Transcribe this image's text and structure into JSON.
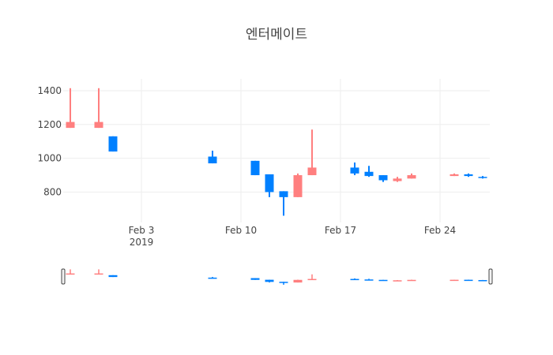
{
  "chart_data": {
    "type": "candlestick",
    "title": "엔터메이트",
    "xlabel": "",
    "ylabel": "",
    "x_ticks": [
      {
        "date": "2019-02-03",
        "label": "Feb 3",
        "sublabel": "2019"
      },
      {
        "date": "2019-02-10",
        "label": "Feb 10",
        "sublabel": ""
      },
      {
        "date": "2019-02-17",
        "label": "Feb 17",
        "sublabel": ""
      },
      {
        "date": "2019-02-24",
        "label": "Feb 24",
        "sublabel": ""
      }
    ],
    "y_ticks": [
      800,
      1000,
      1200,
      1400
    ],
    "xlim": [
      "2019-01-29",
      "2019-02-27"
    ],
    "ylim": [
      620,
      1470
    ],
    "grid": true,
    "legend": "none",
    "rangeslider": true,
    "increasing_color": "#ff7f7f",
    "decreasing_color": "#0080ff",
    "candles": [
      {
        "date": "2019-01-29",
        "open": 1180,
        "high": 1415,
        "low": 1180,
        "close": 1215
      },
      {
        "date": "2019-01-31",
        "open": 1180,
        "high": 1415,
        "low": 1180,
        "close": 1215
      },
      {
        "date": "2019-02-01",
        "open": 1130,
        "high": 1130,
        "low": 1040,
        "close": 1040
      },
      {
        "date": "2019-02-08",
        "open": 1010,
        "high": 1045,
        "low": 970,
        "close": 970
      },
      {
        "date": "2019-02-11",
        "open": 985,
        "high": 985,
        "low": 900,
        "close": 900
      },
      {
        "date": "2019-02-12",
        "open": 905,
        "high": 905,
        "low": 770,
        "close": 800
      },
      {
        "date": "2019-02-13",
        "open": 805,
        "high": 805,
        "low": 660,
        "close": 770
      },
      {
        "date": "2019-02-14",
        "open": 770,
        "high": 910,
        "low": 770,
        "close": 900
      },
      {
        "date": "2019-02-15",
        "open": 900,
        "high": 1170,
        "low": 900,
        "close": 945
      },
      {
        "date": "2019-02-18",
        "open": 945,
        "high": 975,
        "low": 900,
        "close": 910
      },
      {
        "date": "2019-02-19",
        "open": 920,
        "high": 955,
        "low": 890,
        "close": 895
      },
      {
        "date": "2019-02-20",
        "open": 900,
        "high": 900,
        "low": 860,
        "close": 870
      },
      {
        "date": "2019-02-21",
        "open": 865,
        "high": 890,
        "low": 860,
        "close": 880
      },
      {
        "date": "2019-02-22",
        "open": 880,
        "high": 910,
        "low": 880,
        "close": 900
      },
      {
        "date": "2019-02-25",
        "open": 895,
        "high": 910,
        "low": 895,
        "close": 905
      },
      {
        "date": "2019-02-26",
        "open": 905,
        "high": 910,
        "low": 890,
        "close": 895
      },
      {
        "date": "2019-02-27",
        "open": 890,
        "high": 895,
        "low": 880,
        "close": 885
      }
    ]
  }
}
